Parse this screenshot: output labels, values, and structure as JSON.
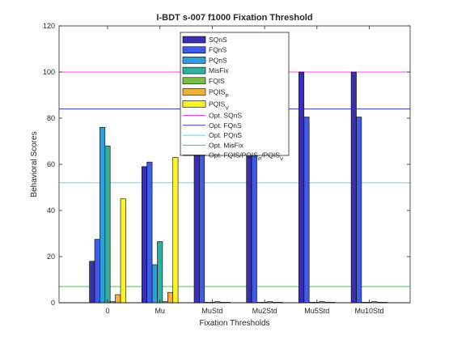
{
  "chart_data": {
    "type": "bar",
    "title": "I-BDT s-007 f1000 Fixation Threshold",
    "xlabel": "Fixation Thresholds",
    "ylabel": "Behavioral Scores",
    "ylim": [
      0,
      120
    ],
    "yticks": [
      0,
      20,
      40,
      60,
      80,
      100,
      120
    ],
    "grid": false,
    "legend_position": "top-center",
    "categories": [
      "0",
      "Mu",
      "MuStd",
      "Mu2Std",
      "Mu5Std",
      "Mu10Std"
    ],
    "series": [
      {
        "name": "SQnS",
        "color": "#3a2fb0",
        "values": [
          18,
          59,
          64,
          64,
          100,
          100
        ]
      },
      {
        "name": "FQnS",
        "color": "#3f5ce6",
        "values": [
          27.5,
          61,
          64,
          64,
          80.5,
          80.5
        ]
      },
      {
        "name": "PQnS",
        "color": "#2f9fdc",
        "values": [
          76,
          16.5,
          0,
          0,
          0,
          0
        ]
      },
      {
        "name": "MisFix",
        "color": "#2fb0a0",
        "values": [
          68,
          26.5,
          0,
          0,
          0,
          0
        ]
      },
      {
        "name": "FQIS",
        "color": "#7cbf4a",
        "values": [
          0.5,
          0.5,
          0.5,
          0.5,
          0.5,
          0.5
        ]
      },
      {
        "name": "PQIS_P",
        "label_main": "PQIS",
        "label_sub": "P",
        "color": "#f4b03c",
        "values": [
          3.5,
          4.5,
          0,
          0,
          0,
          0
        ]
      },
      {
        "name": "PQIS_V",
        "label_main": "PQIS",
        "label_sub": "V",
        "color": "#f8f42a",
        "values": [
          45,
          63,
          0,
          0,
          0,
          0
        ]
      }
    ],
    "reference_lines": [
      {
        "name": "Opt. SQnS",
        "color": "#ff3cff",
        "value": 100
      },
      {
        "name": "Opt. FQnS",
        "color": "#3a3ad6",
        "value": 84
      },
      {
        "name": "Opt. PQnS",
        "color": "#3ce6f0",
        "value": 52
      },
      {
        "name": "Opt. MisFix",
        "color": "#3cd23c",
        "value": 7
      },
      {
        "name": "Opt. FQIS/PQIS_P/PQIS_V",
        "label_main": "Opt. FQIS/PQIS",
        "label_sub1": "P",
        "label_mid": "/PQIS",
        "label_sub2": "V",
        "color": "#000000",
        "value": 0
      }
    ]
  }
}
